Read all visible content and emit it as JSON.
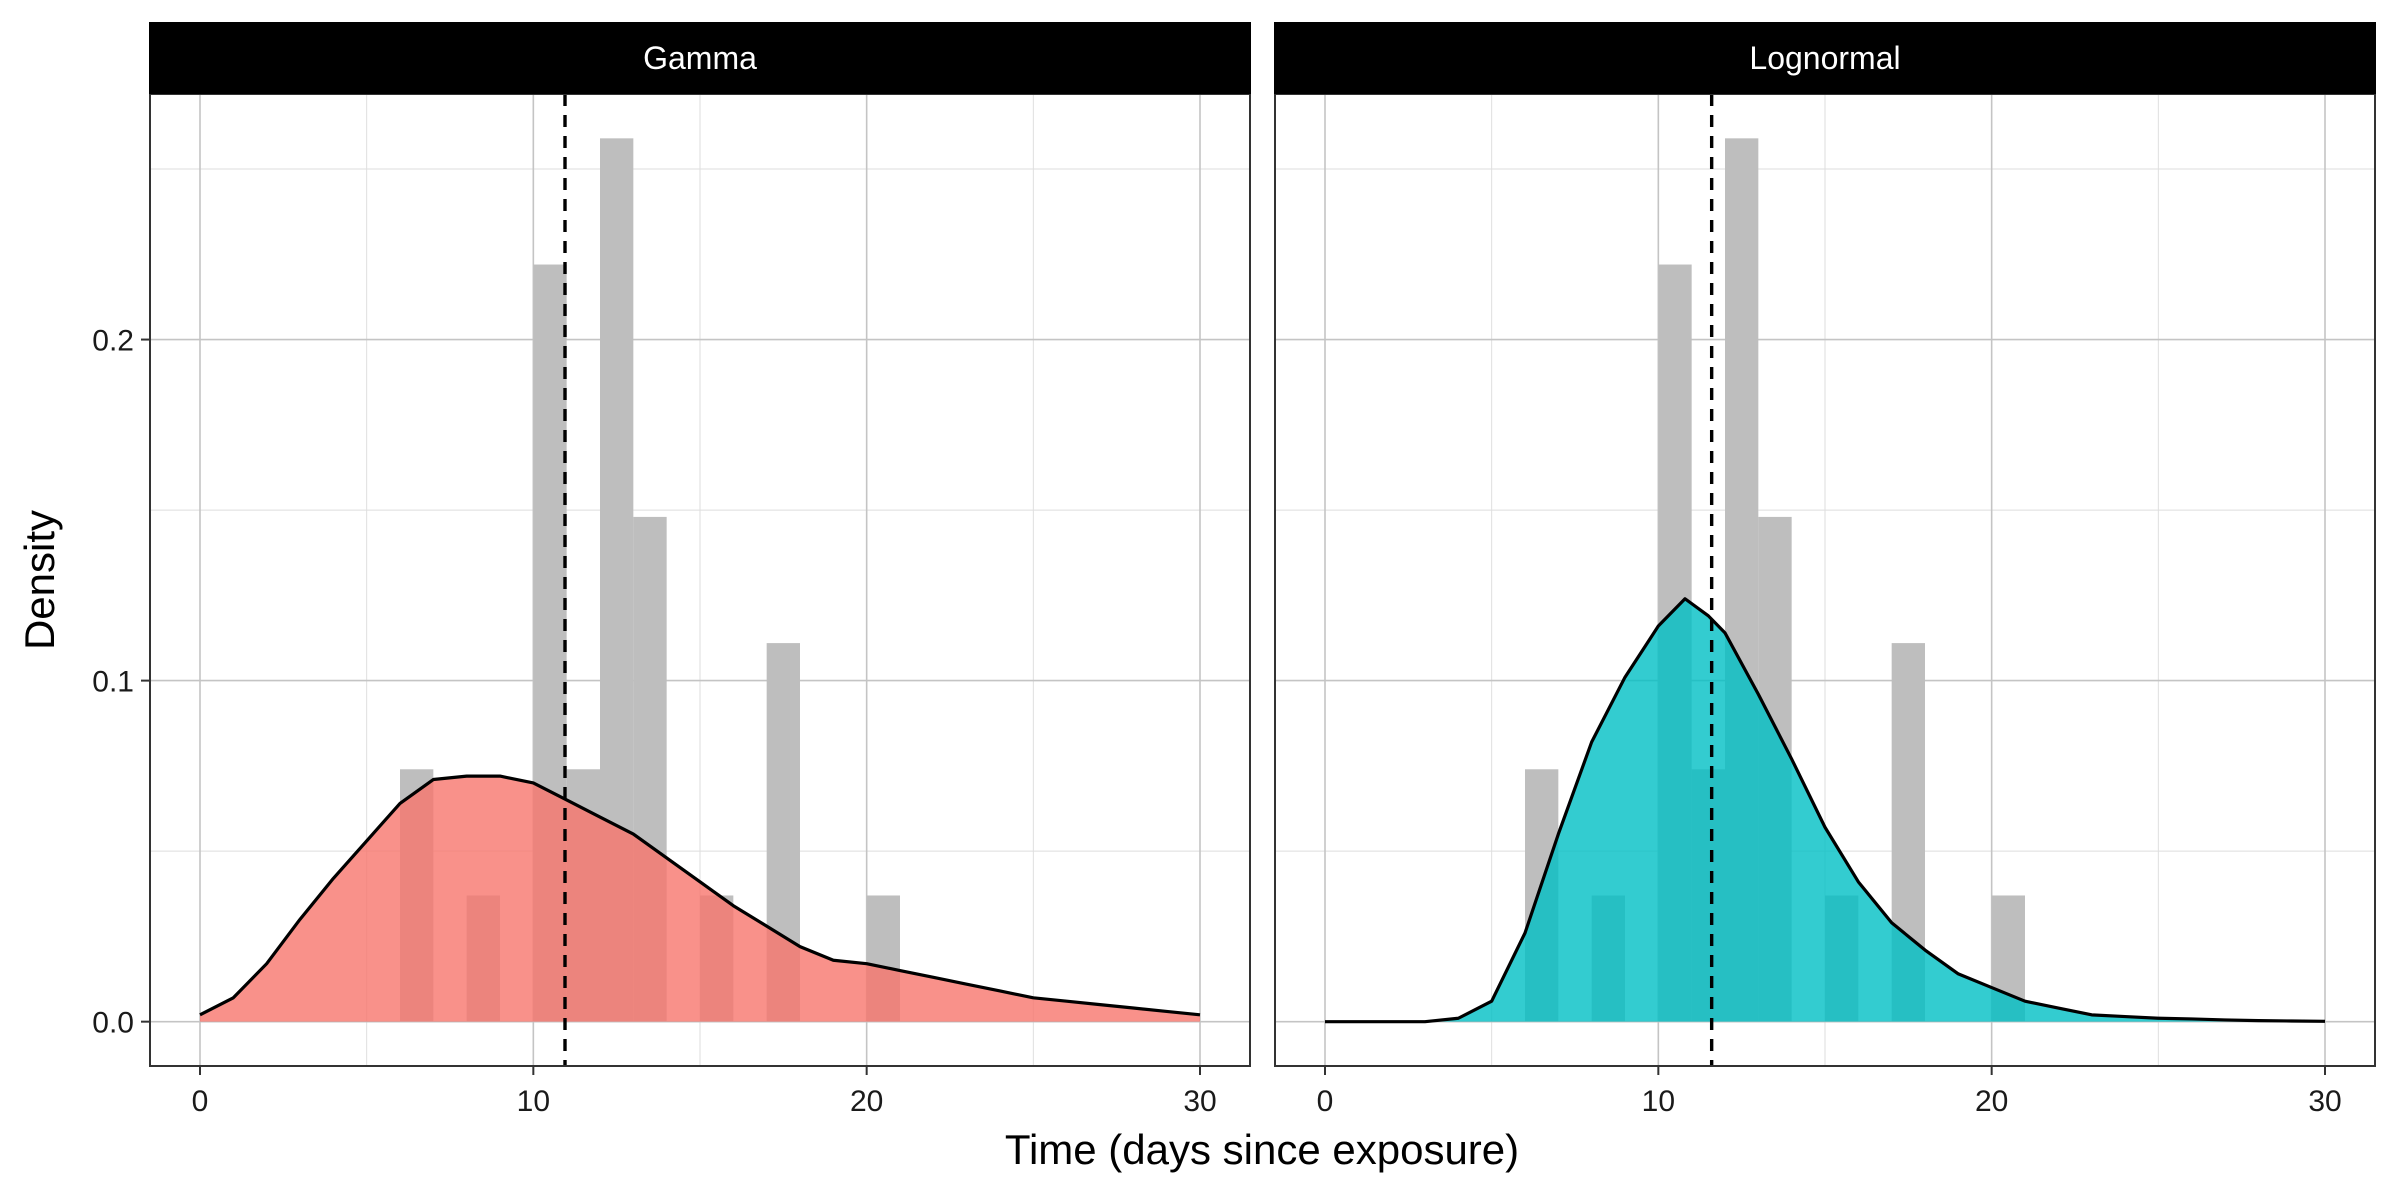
{
  "chart_data": {
    "type": "bar",
    "xlabel": "Time (days since exposure)",
    "ylabel": "Density",
    "xlim": [
      -1.5,
      31.5
    ],
    "ylim": [
      -0.013,
      0.272
    ],
    "x_ticks": [
      0,
      10,
      20,
      30
    ],
    "x_tick_labels": [
      "0",
      "10",
      "20",
      "30"
    ],
    "y_ticks": [
      0.0,
      0.1,
      0.2
    ],
    "y_tick_labels": [
      "0.0",
      "0.1",
      "0.2"
    ],
    "grid": true,
    "histogram": {
      "color": "#bebebe",
      "bins": [
        {
          "x0": 6,
          "x1": 7,
          "density": 0.074
        },
        {
          "x0": 8,
          "x1": 9,
          "density": 0.037
        },
        {
          "x0": 10,
          "x1": 11,
          "density": 0.222
        },
        {
          "x0": 11,
          "x1": 12,
          "density": 0.074
        },
        {
          "x0": 12,
          "x1": 13,
          "density": 0.259
        },
        {
          "x0": 13,
          "x1": 14,
          "density": 0.148
        },
        {
          "x0": 15,
          "x1": 16,
          "density": 0.037
        },
        {
          "x0": 17,
          "x1": 18,
          "density": 0.111
        },
        {
          "x0": 20,
          "x1": 21,
          "density": 0.037
        }
      ]
    },
    "panels": [
      {
        "strip_label": "Gamma",
        "fill_color": "#F8766D",
        "vline": 10.95,
        "density": {
          "x": [
            0,
            1,
            2,
            3,
            4,
            5,
            6,
            7,
            8,
            9,
            10,
            11,
            12,
            13,
            14,
            15,
            16,
            17,
            18,
            19,
            20,
            21,
            22,
            23,
            24,
            25,
            26,
            27,
            28,
            29,
            30
          ],
          "y": [
            0.002,
            0.007,
            0.017,
            0.03,
            0.042,
            0.053,
            0.064,
            0.071,
            0.072,
            0.072,
            0.07,
            0.065,
            0.06,
            0.055,
            0.048,
            0.041,
            0.034,
            0.028,
            0.022,
            0.018,
            0.017,
            0.015,
            0.013,
            0.011,
            0.009,
            0.007,
            0.006,
            0.005,
            0.004,
            0.003,
            0.002
          ]
        }
      },
      {
        "strip_label": "Lognormal",
        "fill_color": "#00BFC4",
        "vline": 11.6,
        "density": {
          "x": [
            0,
            1,
            2,
            3,
            4,
            5,
            6,
            7,
            8,
            9,
            10,
            10.8,
            11.5,
            12,
            13,
            14,
            15,
            16,
            17,
            18,
            19,
            20,
            21,
            22,
            23,
            24,
            25,
            26,
            27,
            28,
            29,
            30
          ],
          "y": [
            0.0,
            0.0,
            0.0,
            0.0,
            0.001,
            0.006,
            0.026,
            0.055,
            0.082,
            0.101,
            0.116,
            0.124,
            0.119,
            0.114,
            0.096,
            0.077,
            0.057,
            0.041,
            0.029,
            0.021,
            0.014,
            0.01,
            0.006,
            0.004,
            0.002,
            0.0015,
            0.001,
            0.0008,
            0.0005,
            0.0003,
            0.0002,
            0.0001
          ]
        }
      }
    ]
  }
}
